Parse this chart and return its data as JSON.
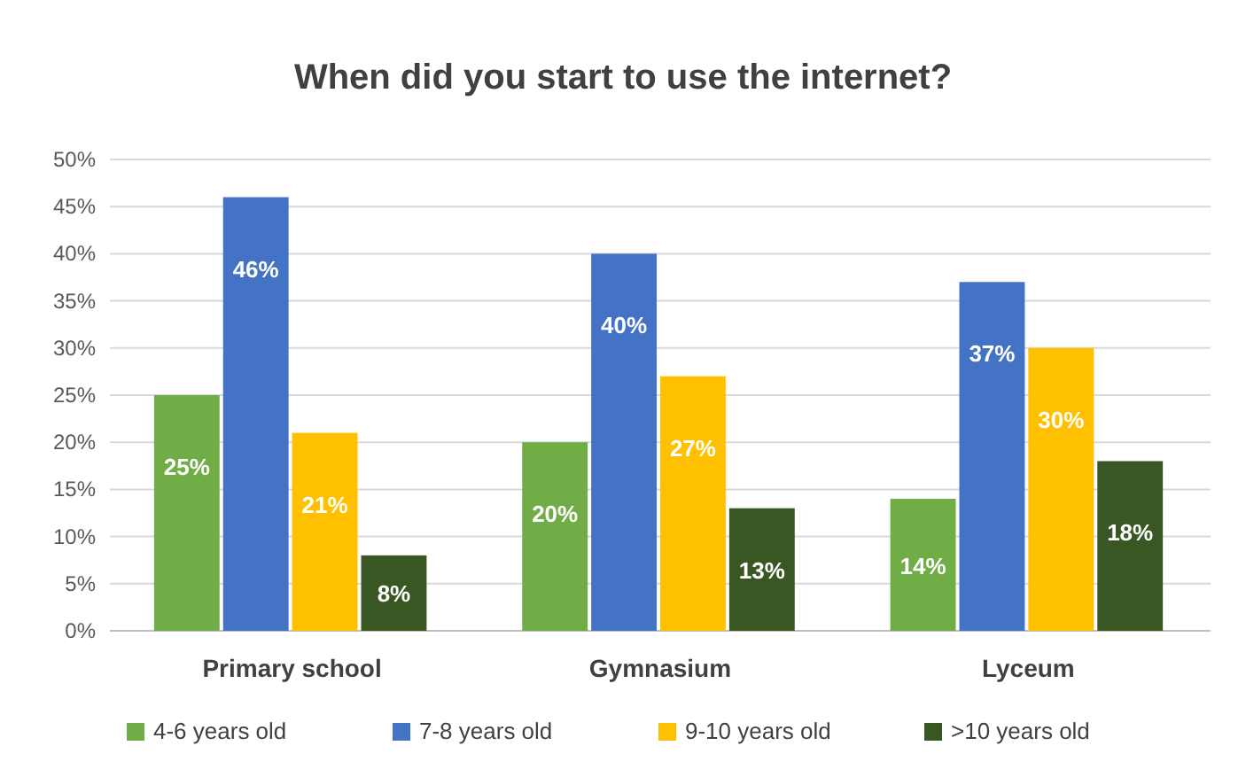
{
  "chart_data": {
    "type": "bar",
    "title": "When did you start to use the internet?",
    "categories": [
      "Primary school",
      "Gymnasium",
      "Lyceum"
    ],
    "series": [
      {
        "name": "4-6 years old",
        "color": "#70ad47",
        "values": [
          25,
          20,
          14
        ],
        "value_labels": [
          "25%",
          "20%",
          "14%"
        ]
      },
      {
        "name": "7-8 years old",
        "color": "#4472c4",
        "values": [
          46,
          40,
          37
        ],
        "value_labels": [
          "46%",
          "40%",
          "37%"
        ]
      },
      {
        "name": "9-10 years old",
        "color": "#ffc000",
        "values": [
          21,
          27,
          30
        ],
        "value_labels": [
          "21%",
          "27%",
          "30%"
        ]
      },
      {
        "name": ">10 years old",
        "color": "#385723",
        "values": [
          8,
          13,
          18
        ],
        "value_labels": [
          "8%",
          "13%",
          "18%"
        ]
      }
    ],
    "ylim": [
      0,
      50
    ],
    "yticks": [
      {
        "value": 0,
        "label": "0%"
      },
      {
        "value": 5,
        "label": "5%"
      },
      {
        "value": 10,
        "label": "10%"
      },
      {
        "value": 15,
        "label": "15%"
      },
      {
        "value": 20,
        "label": "20%"
      },
      {
        "value": 25,
        "label": "25%"
      },
      {
        "value": 30,
        "label": "30%"
      },
      {
        "value": 35,
        "label": "35%"
      },
      {
        "value": 40,
        "label": "40%"
      },
      {
        "value": 45,
        "label": "45%"
      },
      {
        "value": 50,
        "label": "50%"
      }
    ],
    "grid": "y",
    "legend": "bottom"
  }
}
